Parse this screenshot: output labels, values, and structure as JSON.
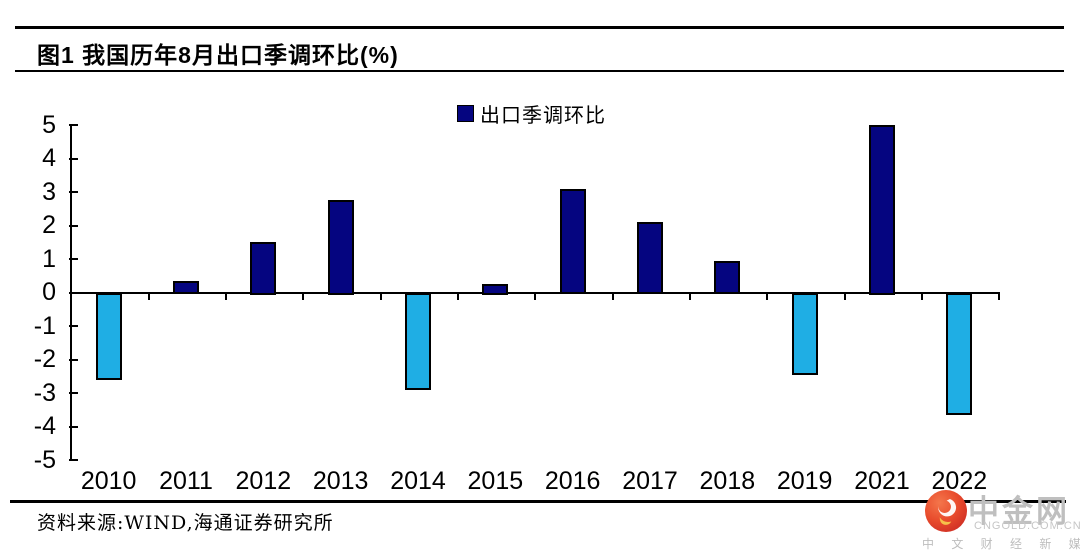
{
  "figure": {
    "title": "图1  我国历年8月出口季调环比(%)",
    "source": "资料来源:WIND,海通证券研究所"
  },
  "chart_data": {
    "type": "bar",
    "title": "图1  我国历年8月出口季调环比(%)",
    "legend": [
      {
        "label": "出口季调环比",
        "swatch_color": "#050580"
      }
    ],
    "legend_position": "top-center",
    "categories": [
      "2010",
      "2011",
      "2012",
      "2013",
      "2014",
      "2015",
      "2016",
      "2017",
      "2018",
      "2019",
      "2021",
      "2022"
    ],
    "values": [
      -2.6,
      0.35,
      1.5,
      2.75,
      -2.9,
      0.25,
      3.1,
      2.1,
      0.95,
      -2.45,
      5.0,
      -3.65
    ],
    "ylim": [
      -5,
      5
    ],
    "yticks": [
      5,
      4,
      3,
      2,
      1,
      0,
      -1,
      -2,
      -3,
      -4,
      -5
    ],
    "grid": false,
    "colors": {
      "positive_bar": "#050580",
      "negative_bar": "#1FAEE4",
      "axis": "#000000"
    }
  },
  "watermark": {
    "brand": "中金网",
    "domain": "CNGOLD.COM.CN",
    "tagline": "中 文 财 经 新 媒 体",
    "logo": "red-orange-swirl-icon"
  }
}
